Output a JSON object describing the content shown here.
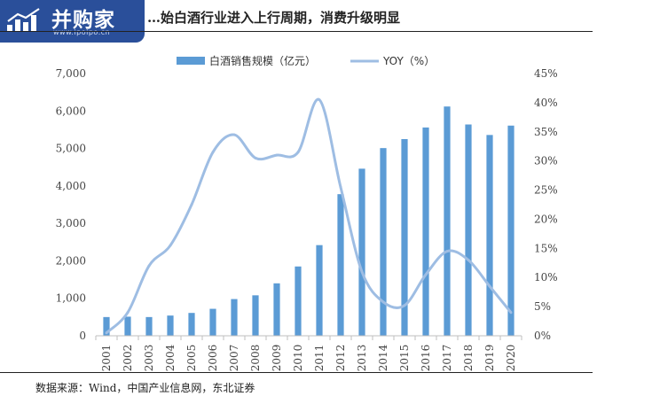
{
  "logo": {
    "name": "并购家",
    "url": "www.ipoipo.cn",
    "icon": "bar-chart-logo-icon"
  },
  "title": "…始白酒行业进入上行周期，消费升级明显",
  "source": "数据来源：Wind，中国产业信息网，东北证券",
  "colors": {
    "bar": "#5b9bd5",
    "line": "#9ebde3",
    "logo_bg": "#2a4f9a"
  },
  "chart_data": {
    "type": "bar",
    "categories": [
      "2001",
      "2002",
      "2003",
      "2004",
      "2005",
      "2006",
      "2007",
      "2008",
      "2009",
      "2010",
      "2011",
      "2012",
      "2013",
      "2014",
      "2015",
      "2016",
      "2017",
      "2018",
      "2019",
      "2020"
    ],
    "series": [
      {
        "name": "白酒销售规模（亿元）",
        "type": "bar",
        "axis": "left",
        "values": [
          500,
          510,
          500,
          540,
          610,
          720,
          980,
          1080,
          1400,
          1850,
          2420,
          3780,
          4460,
          5010,
          5250,
          5560,
          6120,
          5640,
          5360,
          5610
        ]
      },
      {
        "name": "YOY（%）",
        "type": "line",
        "axis": "right",
        "values": [
          0.5,
          4.0,
          12.0,
          15.5,
          22.5,
          31.5,
          34.5,
          30.5,
          31.0,
          31.5,
          40.5,
          25.5,
          11.0,
          5.8,
          5.2,
          10.5,
          14.5,
          13.0,
          8.5,
          4.0
        ]
      }
    ],
    "y_left": {
      "min": 0,
      "max": 7000,
      "ticks": [
        "0",
        "1,000",
        "2,000",
        "3,000",
        "4,000",
        "5,000",
        "6,000",
        "7,000"
      ]
    },
    "y_right": {
      "min": 0,
      "max": 45,
      "ticks": [
        "0%",
        "5%",
        "10%",
        "15%",
        "20%",
        "25%",
        "30%",
        "35%",
        "40%",
        "45%"
      ]
    },
    "legend": "top-center",
    "grid": false
  }
}
